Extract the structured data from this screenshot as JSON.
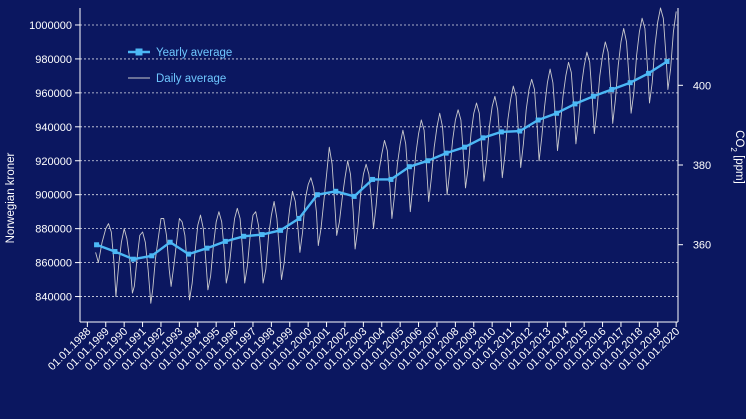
{
  "colors": {
    "background": "#0b1760",
    "axis": "#ffffff",
    "grid": "#ffffff",
    "yearly_line": "#4cb8f5",
    "daily_line": "#c8c8cc"
  },
  "chart_data": {
    "type": "line",
    "title": "",
    "ylabel": "Norwegian kroner",
    "y2label_main": "CO",
    "y2label_sub": "2",
    "y2label_unit": " [ppm]",
    "ylim": [
      825000,
      1010000
    ],
    "y2lim": [
      340.6,
      419.4
    ],
    "xlim": [
      1987.6,
      2020.1
    ],
    "yticks": [
      840000,
      860000,
      880000,
      900000,
      920000,
      940000,
      960000,
      980000,
      1000000
    ],
    "ytick_labels": [
      "840000",
      "860000",
      "880000",
      "900000",
      "920000",
      "940000",
      "960000",
      "980000",
      "1000000"
    ],
    "y2ticks": [
      360,
      380,
      400
    ],
    "y2tick_labels": [
      "360",
      "380",
      "400"
    ],
    "xticks": [
      1988,
      1989,
      1990,
      1991,
      1992,
      1993,
      1994,
      1995,
      1996,
      1997,
      1998,
      1999,
      2000,
      2001,
      2002,
      2003,
      2004,
      2005,
      2006,
      2007,
      2008,
      2009,
      2010,
      2011,
      2012,
      2013,
      2014,
      2015,
      2016,
      2017,
      2018,
      2019,
      2020
    ],
    "xtick_labels": [
      "01.01.1988",
      "01.01.1989",
      "01.01.1990",
      "01.01.1991",
      "01.01.1992",
      "01.01.1993",
      "01.01.1994",
      "01.01.1995",
      "01.01.1996",
      "01.01.1997",
      "01.01.1998",
      "01.01.1999",
      "01.01.2000",
      "01.01.2001",
      "01.01.2002",
      "01.01.2003",
      "01.01.2004",
      "01.01.2005",
      "01.01.2006",
      "01.01.2007",
      "01.01.2008",
      "01.01.2009",
      "01.01.2010",
      "01.01.2011",
      "01.01.2012",
      "01.01.2013",
      "01.01.2014",
      "01.01.2015",
      "01.01.2016",
      "01.01.2017",
      "01.01.2018",
      "01.01.2019",
      "01.01.2020"
    ],
    "legend": {
      "position": "top-left",
      "yearly_label": "Yearly average",
      "daily_label": "Daily average"
    },
    "series": [
      {
        "name": "Yearly average",
        "x": [
          1988.5,
          1989.5,
          1990.5,
          1991.5,
          1992.5,
          1993.5,
          1994.5,
          1995.5,
          1996.5,
          1997.5,
          1998.5,
          1999.5,
          2000.5,
          2001.5,
          2002.5,
          2003.5,
          2004.5,
          2005.5,
          2006.5,
          2007.5,
          2008.5,
          2009.5,
          2010.5,
          2011.5,
          2012.5,
          2013.5,
          2014.5,
          2015.5,
          2016.5,
          2017.5,
          2018.5,
          2019.5
        ],
        "values": [
          870500,
          866500,
          862000,
          864000,
          872000,
          865000,
          868500,
          872500,
          875500,
          876500,
          879000,
          886000,
          900000,
          902000,
          899000,
          909000,
          909000,
          916500,
          920000,
          924500,
          928000,
          933500,
          937000,
          937500,
          944000,
          948000,
          953500,
          958000,
          962000,
          966000,
          971500,
          978500
        ]
      },
      {
        "name": "Daily average",
        "x": [
          1988.45,
          1988.6,
          1988.8,
          1989.0,
          1989.15,
          1989.3,
          1989.45,
          1989.55,
          1989.7,
          1989.85,
          1990.0,
          1990.15,
          1990.3,
          1990.45,
          1990.55,
          1990.7,
          1990.85,
          1991.0,
          1991.15,
          1991.3,
          1991.45,
          1991.55,
          1991.7,
          1991.85,
          1992.0,
          1992.15,
          1992.3,
          1992.45,
          1992.55,
          1992.7,
          1992.85,
          1993.0,
          1993.15,
          1993.3,
          1993.45,
          1993.55,
          1993.7,
          1993.85,
          1994.0,
          1994.15,
          1994.3,
          1994.45,
          1994.55,
          1994.7,
          1994.85,
          1995.0,
          1995.15,
          1995.3,
          1995.45,
          1995.55,
          1995.7,
          1995.85,
          1996.0,
          1996.15,
          1996.3,
          1996.45,
          1996.55,
          1996.7,
          1996.85,
          1997.0,
          1997.15,
          1997.3,
          1997.45,
          1997.55,
          1997.7,
          1997.85,
          1998.0,
          1998.15,
          1998.3,
          1998.45,
          1998.55,
          1998.7,
          1998.85,
          1999.0,
          1999.15,
          1999.3,
          1999.45,
          1999.55,
          1999.7,
          1999.85,
          2000.0,
          2000.15,
          2000.3,
          2000.45,
          2000.55,
          2000.7,
          2000.85,
          2001.0,
          2001.15,
          2001.3,
          2001.45,
          2001.55,
          2001.7,
          2001.85,
          2002.0,
          2002.15,
          2002.3,
          2002.45,
          2002.55,
          2002.7,
          2002.85,
          2003.0,
          2003.15,
          2003.3,
          2003.45,
          2003.55,
          2003.7,
          2003.85,
          2004.0,
          2004.15,
          2004.3,
          2004.45,
          2004.55,
          2004.7,
          2004.85,
          2005.0,
          2005.15,
          2005.3,
          2005.45,
          2005.55,
          2005.7,
          2005.85,
          2006.0,
          2006.15,
          2006.3,
          2006.45,
          2006.55,
          2006.7,
          2006.85,
          2007.0,
          2007.15,
          2007.3,
          2007.45,
          2007.55,
          2007.7,
          2007.85,
          2008.0,
          2008.15,
          2008.3,
          2008.45,
          2008.55,
          2008.7,
          2008.85,
          2009.0,
          2009.15,
          2009.3,
          2009.45,
          2009.55,
          2009.7,
          2009.85,
          2010.0,
          2010.15,
          2010.3,
          2010.45,
          2010.55,
          2010.7,
          2010.85,
          2011.0,
          2011.15,
          2011.3,
          2011.45,
          2011.55,
          2011.7,
          2011.85,
          2012.0,
          2012.15,
          2012.3,
          2012.45,
          2012.55,
          2012.7,
          2012.85,
          2013.0,
          2013.15,
          2013.3,
          2013.45,
          2013.55,
          2013.7,
          2013.85,
          2014.0,
          2014.15,
          2014.3,
          2014.45,
          2014.55,
          2014.7,
          2014.85,
          2015.0,
          2015.15,
          2015.3,
          2015.45,
          2015.55,
          2015.7,
          2015.85,
          2016.0,
          2016.15,
          2016.3,
          2016.45,
          2016.55,
          2016.7,
          2016.85,
          2017.0,
          2017.15,
          2017.3,
          2017.45,
          2017.55,
          2017.7,
          2017.85,
          2018.0,
          2018.15,
          2018.3,
          2018.45,
          2018.55,
          2018.7,
          2018.85,
          2019.0,
          2019.15,
          2019.3,
          2019.45,
          2019.55,
          2019.7,
          2019.85,
          2020.0
        ],
        "values": [
          866000,
          860000,
          872000,
          880000,
          883000,
          878000,
          860000,
          840000,
          858000,
          872000,
          880000,
          874000,
          862000,
          842000,
          846000,
          862000,
          876000,
          878000,
          872000,
          856000,
          836000,
          844000,
          862000,
          874000,
          886000,
          886000,
          876000,
          856000,
          846000,
          858000,
          872000,
          886000,
          884000,
          876000,
          856000,
          838000,
          848000,
          866000,
          882000,
          888000,
          880000,
          860000,
          844000,
          852000,
          870000,
          884000,
          890000,
          884000,
          866000,
          848000,
          856000,
          872000,
          886000,
          892000,
          886000,
          866000,
          848000,
          858000,
          876000,
          888000,
          890000,
          882000,
          864000,
          848000,
          856000,
          876000,
          888000,
          896000,
          886000,
          866000,
          850000,
          860000,
          878000,
          892000,
          902000,
          896000,
          880000,
          866000,
          878000,
          898000,
          906000,
          910000,
          904000,
          890000,
          870000,
          880000,
          896000,
          912000,
          928000,
          918000,
          894000,
          876000,
          884000,
          898000,
          910000,
          920000,
          912000,
          890000,
          868000,
          880000,
          900000,
          912000,
          918000,
          912000,
          896000,
          880000,
          894000,
          914000,
          924000,
          932000,
          926000,
          904000,
          886000,
          900000,
          918000,
          930000,
          938000,
          930000,
          908000,
          890000,
          906000,
          924000,
          936000,
          944000,
          938000,
          914000,
          896000,
          910000,
          928000,
          940000,
          948000,
          940000,
          918000,
          900000,
          914000,
          932000,
          944000,
          950000,
          944000,
          922000,
          904000,
          916000,
          936000,
          948000,
          954000,
          948000,
          926000,
          908000,
          920000,
          940000,
          952000,
          958000,
          950000,
          928000,
          910000,
          924000,
          944000,
          956000,
          964000,
          958000,
          934000,
          916000,
          930000,
          950000,
          962000,
          968000,
          962000,
          940000,
          920000,
          934000,
          952000,
          966000,
          974000,
          966000,
          944000,
          926000,
          940000,
          958000,
          970000,
          978000,
          972000,
          950000,
          930000,
          944000,
          964000,
          976000,
          984000,
          978000,
          956000,
          936000,
          950000,
          970000,
          982000,
          990000,
          984000,
          962000,
          942000,
          956000,
          976000,
          990000,
          998000,
          990000,
          968000,
          948000,
          960000,
          982000,
          996000,
          1004000,
          998000,
          974000,
          954000,
          966000,
          988000,
          1002000,
          1010000,
          1004000,
          982000,
          962000,
          974000,
          996000,
          1008000
        ]
      }
    ]
  }
}
